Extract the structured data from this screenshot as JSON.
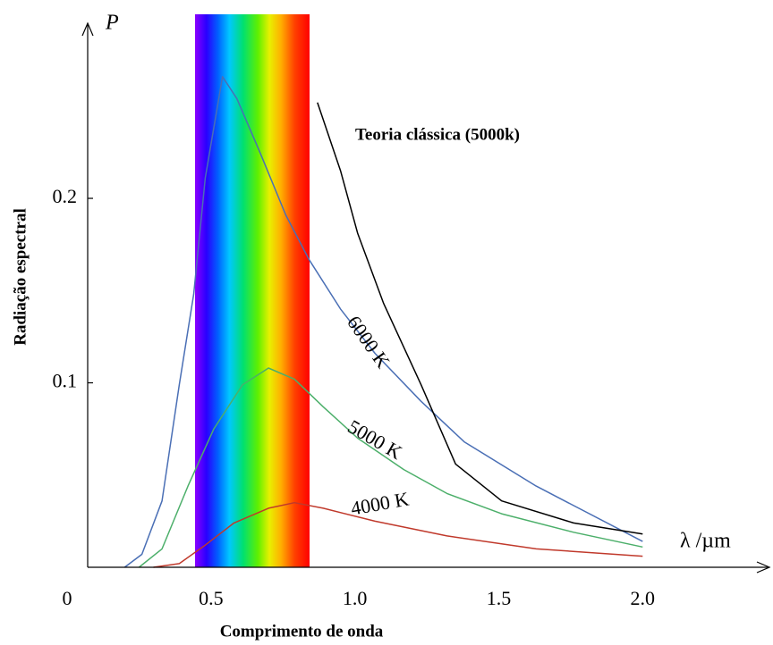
{
  "chart_data": {
    "type": "line",
    "y_label": "Radiação espectral",
    "x_label": "Comprimento de onda",
    "y_axis_symbol": "P",
    "x_axis_symbol": "λ /µm",
    "xlim": [
      0,
      2.45
    ],
    "ylim": [
      0,
      0.293
    ],
    "xticks": [
      0,
      0.5,
      {
        "value": 1,
        "label": "1.0"
      },
      1.5,
      {
        "value": 2,
        "label": "2.0"
      }
    ],
    "yticks": [
      0.1,
      0.2
    ],
    "series": [
      {
        "name": "6000 K",
        "color": "#4a6fb5",
        "x": [
          0.2,
          0.26,
          0.33,
          0.39,
          0.44,
          0.48,
          0.54,
          0.59,
          0.67,
          0.76,
          0.84,
          0.95,
          1.07,
          1.23,
          1.38,
          1.63,
          2.0
        ],
        "values": [
          0,
          0.007,
          0.036,
          0.099,
          0.148,
          0.211,
          0.266,
          0.254,
          0.225,
          0.191,
          0.167,
          0.14,
          0.116,
          0.09,
          0.068,
          0.044,
          0.014
        ]
      },
      {
        "name": "5000 K",
        "color": "#4caf6a",
        "x": [
          0.25,
          0.33,
          0.42,
          0.51,
          0.61,
          0.7,
          0.79,
          0.89,
          1.01,
          1.17,
          1.32,
          1.51,
          1.76,
          2.0
        ],
        "values": [
          0,
          0.01,
          0.044,
          0.075,
          0.099,
          0.108,
          0.102,
          0.087,
          0.07,
          0.053,
          0.04,
          0.029,
          0.019,
          0.011
        ]
      },
      {
        "name": "4000 K",
        "color": "#c0392b",
        "x": [
          0.3,
          0.39,
          0.48,
          0.58,
          0.7,
          0.79,
          0.89,
          1.07,
          1.32,
          1.63,
          2.0
        ],
        "values": [
          0,
          0.002,
          0.012,
          0.024,
          0.032,
          0.035,
          0.032,
          0.025,
          0.017,
          0.01,
          0.006
        ]
      },
      {
        "name": "Teoria clássica (5000k)",
        "color": "#000000",
        "x": [
          0.87,
          0.95,
          1.01,
          1.1,
          1.23,
          1.35,
          1.51,
          1.76,
          2.0
        ],
        "values": [
          0.252,
          0.215,
          0.181,
          0.143,
          0.099,
          0.056,
          0.036,
          0.024,
          0.018
        ]
      }
    ]
  }
}
